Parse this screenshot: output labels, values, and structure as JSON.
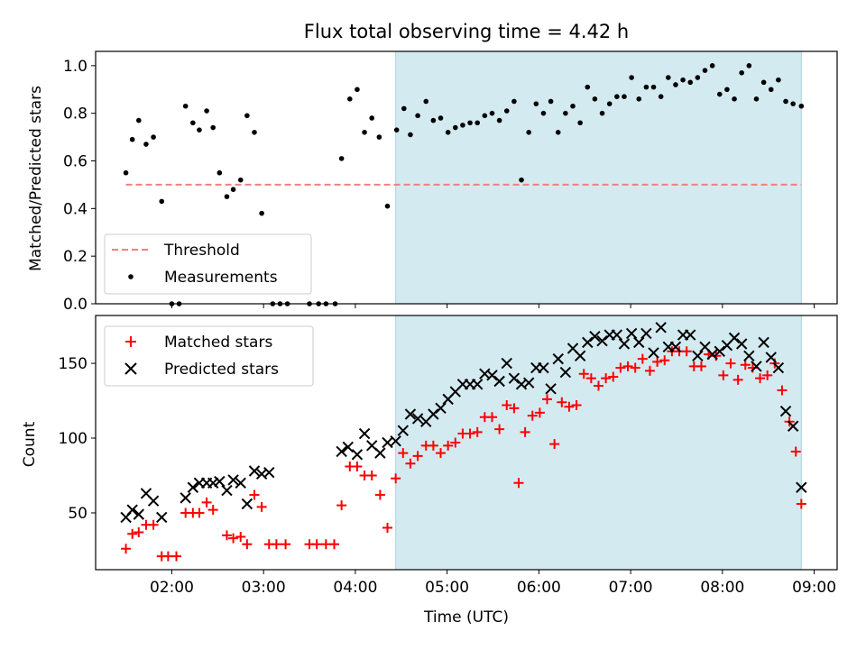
{
  "chart_data": [
    {
      "type": "scatter",
      "title": "Flux total observing time = 4.42 h",
      "xlabel": "",
      "ylabel": "Matched/Predicted stars",
      "ylim": [
        0,
        1.06
      ],
      "yticks": [
        "0.0",
        "0.2",
        "0.4",
        "0.6",
        "0.8",
        "1.0"
      ],
      "xlim_hours": [
        1.17,
        9.25
      ],
      "shaded_span_hours": [
        4.44,
        8.86
      ],
      "shade_color": "#d4eaf1",
      "threshold": {
        "name": "Threshold",
        "value": 0.5,
        "x_range_hours": [
          1.5,
          8.86
        ],
        "color": "#f08080"
      },
      "legend": {
        "placement": "lower-left",
        "entries": [
          "Threshold",
          "Measurements"
        ]
      },
      "series": [
        {
          "name": "Measurements",
          "color": "#000000",
          "marker": "dot",
          "x_hours": [
            1.5,
            1.57,
            1.64,
            1.72,
            1.8,
            1.89,
            2.0,
            2.08,
            2.15,
            2.23,
            2.3,
            2.38,
            2.45,
            2.52,
            2.6,
            2.67,
            2.75,
            2.82,
            2.9,
            2.98,
            3.1,
            3.18,
            3.26,
            3.5,
            3.6,
            3.68,
            3.78,
            3.85,
            3.94,
            4.02,
            4.1,
            4.18,
            4.26,
            4.35,
            4.45,
            4.53,
            4.6,
            4.68,
            4.77,
            4.85,
            4.93,
            5.01,
            5.09,
            5.17,
            5.25,
            5.33,
            5.41,
            5.49,
            5.57,
            5.65,
            5.73,
            5.81,
            5.89,
            5.97,
            6.05,
            6.13,
            6.21,
            6.29,
            6.37,
            6.45,
            6.53,
            6.61,
            6.69,
            6.77,
            6.85,
            6.93,
            7.01,
            7.09,
            7.17,
            7.25,
            7.33,
            7.41,
            7.49,
            7.57,
            7.65,
            7.73,
            7.81,
            7.89,
            7.97,
            8.05,
            8.13,
            8.21,
            8.29,
            8.37,
            8.45,
            8.53,
            8.61,
            8.69,
            8.77,
            8.86
          ],
          "y": [
            0.55,
            0.69,
            0.77,
            0.67,
            0.7,
            0.43,
            0.0,
            0.0,
            0.83,
            0.76,
            0.73,
            0.81,
            0.74,
            0.55,
            0.45,
            0.48,
            0.52,
            0.79,
            0.72,
            0.38,
            0.0,
            0.0,
            0.0,
            0.0,
            0.0,
            0.0,
            0.0,
            0.61,
            0.86,
            0.9,
            0.72,
            0.78,
            0.7,
            0.41,
            0.73,
            0.82,
            0.71,
            0.79,
            0.85,
            0.77,
            0.78,
            0.72,
            0.74,
            0.75,
            0.76,
            0.76,
            0.79,
            0.8,
            0.77,
            0.81,
            0.85,
            0.52,
            0.72,
            0.84,
            0.8,
            0.85,
            0.72,
            0.8,
            0.83,
            0.76,
            0.91,
            0.86,
            0.8,
            0.84,
            0.87,
            0.87,
            0.95,
            0.86,
            0.91,
            0.91,
            0.87,
            0.95,
            0.92,
            0.94,
            0.93,
            0.95,
            0.98,
            1.0,
            0.88,
            0.9,
            0.86,
            0.97,
            1.0,
            0.86,
            0.93,
            0.9,
            0.94,
            0.85,
            0.84,
            0.83
          ]
        }
      ]
    },
    {
      "type": "scatter",
      "title": "",
      "xlabel": "Time (UTC)",
      "ylabel": "Count",
      "ylim": [
        12,
        182
      ],
      "yticks": [
        "50",
        "100",
        "150"
      ],
      "xlim_hours": [
        1.17,
        9.25
      ],
      "xticks": [
        "02:00",
        "03:00",
        "04:00",
        "05:00",
        "06:00",
        "07:00",
        "08:00",
        "09:00"
      ],
      "shaded_span_hours": [
        4.44,
        8.86
      ],
      "shade_color": "#d4eaf1",
      "legend": {
        "placement": "upper-left",
        "entries": [
          "Matched stars",
          "Predicted stars"
        ]
      },
      "series": [
        {
          "name": "Matched stars",
          "color": "#ff0000",
          "marker": "plus",
          "points": [
            [
              1.5,
              26
            ],
            [
              1.57,
              36
            ],
            [
              1.64,
              37
            ],
            [
              1.72,
              42
            ],
            [
              1.8,
              42
            ],
            [
              1.89,
              21
            ],
            [
              1.96,
              21
            ],
            [
              2.05,
              21
            ],
            [
              2.15,
              50
            ],
            [
              2.23,
              50
            ],
            [
              2.3,
              50
            ],
            [
              2.38,
              57
            ],
            [
              2.45,
              52
            ],
            [
              2.6,
              35
            ],
            [
              2.67,
              33
            ],
            [
              2.75,
              34
            ],
            [
              2.82,
              29
            ],
            [
              2.9,
              62
            ],
            [
              2.98,
              54
            ],
            [
              3.06,
              29
            ],
            [
              3.14,
              29
            ],
            [
              3.24,
              29
            ],
            [
              3.5,
              29
            ],
            [
              3.58,
              29
            ],
            [
              3.68,
              29
            ],
            [
              3.77,
              29
            ],
            [
              3.85,
              55
            ],
            [
              3.94,
              81
            ],
            [
              4.02,
              81
            ],
            [
              4.1,
              75
            ],
            [
              4.18,
              75
            ],
            [
              4.27,
              62
            ],
            [
              4.35,
              40
            ],
            [
              4.44,
              73
            ],
            [
              4.52,
              90
            ],
            [
              4.6,
              83
            ],
            [
              4.68,
              88
            ],
            [
              4.77,
              95
            ],
            [
              4.85,
              95
            ],
            [
              4.93,
              90
            ],
            [
              5.01,
              95
            ],
            [
              5.09,
              97
            ],
            [
              5.17,
              103
            ],
            [
              5.25,
              103
            ],
            [
              5.33,
              104
            ],
            [
              5.41,
              114
            ],
            [
              5.49,
              114
            ],
            [
              5.57,
              106
            ],
            [
              5.65,
              122
            ],
            [
              5.73,
              120
            ],
            [
              5.78,
              70
            ],
            [
              5.85,
              104
            ],
            [
              5.93,
              115
            ],
            [
              6.01,
              117
            ],
            [
              6.09,
              126
            ],
            [
              6.17,
              96
            ],
            [
              6.25,
              124
            ],
            [
              6.33,
              121
            ],
            [
              6.41,
              122
            ],
            [
              6.49,
              143
            ],
            [
              6.57,
              140
            ],
            [
              6.65,
              135
            ],
            [
              6.73,
              140
            ],
            [
              6.81,
              141
            ],
            [
              6.89,
              147
            ],
            [
              6.97,
              148
            ],
            [
              7.05,
              147
            ],
            [
              7.13,
              153
            ],
            [
              7.21,
              145
            ],
            [
              7.29,
              151
            ],
            [
              7.37,
              152
            ],
            [
              7.45,
              158
            ],
            [
              7.53,
              158
            ],
            [
              7.61,
              158
            ],
            [
              7.69,
              148
            ],
            [
              7.77,
              148
            ],
            [
              7.85,
              156
            ],
            [
              7.93,
              155
            ],
            [
              8.01,
              142
            ],
            [
              8.09,
              150
            ],
            [
              8.17,
              139
            ],
            [
              8.25,
              149
            ],
            [
              8.33,
              147
            ],
            [
              8.41,
              140
            ],
            [
              8.49,
              142
            ],
            [
              8.57,
              150
            ],
            [
              8.65,
              132
            ],
            [
              8.73,
              111
            ],
            [
              8.8,
              91
            ],
            [
              8.86,
              56
            ]
          ]
        },
        {
          "name": "Predicted stars",
          "color": "#000000",
          "marker": "x",
          "points": [
            [
              1.5,
              47
            ],
            [
              1.57,
              52
            ],
            [
              1.64,
              49
            ],
            [
              1.72,
              63
            ],
            [
              1.8,
              58
            ],
            [
              1.89,
              47
            ],
            [
              2.15,
              60
            ],
            [
              2.23,
              67
            ],
            [
              2.3,
              70
            ],
            [
              2.38,
              70
            ],
            [
              2.45,
              70
            ],
            [
              2.52,
              71
            ],
            [
              2.6,
              65
            ],
            [
              2.67,
              72
            ],
            [
              2.75,
              70
            ],
            [
              2.82,
              56
            ],
            [
              2.9,
              78
            ],
            [
              2.98,
              76
            ],
            [
              3.06,
              77
            ],
            [
              3.85,
              91
            ],
            [
              3.92,
              94
            ],
            [
              4.02,
              89
            ],
            [
              4.1,
              103
            ],
            [
              4.18,
              95
            ],
            [
              4.27,
              90
            ],
            [
              4.35,
              97
            ],
            [
              4.44,
              98
            ],
            [
              4.52,
              105
            ],
            [
              4.6,
              116
            ],
            [
              4.68,
              113
            ],
            [
              4.77,
              111
            ],
            [
              4.85,
              116
            ],
            [
              4.93,
              120
            ],
            [
              5.01,
              126
            ],
            [
              5.09,
              131
            ],
            [
              5.17,
              136
            ],
            [
              5.25,
              136
            ],
            [
              5.33,
              136
            ],
            [
              5.41,
              143
            ],
            [
              5.49,
              142
            ],
            [
              5.57,
              138
            ],
            [
              5.65,
              150
            ],
            [
              5.73,
              140
            ],
            [
              5.81,
              136
            ],
            [
              5.89,
              137
            ],
            [
              5.97,
              147
            ],
            [
              6.05,
              147
            ],
            [
              6.13,
              133
            ],
            [
              6.21,
              153
            ],
            [
              6.29,
              144
            ],
            [
              6.37,
              160
            ],
            [
              6.45,
              155
            ],
            [
              6.53,
              164
            ],
            [
              6.61,
              168
            ],
            [
              6.69,
              165
            ],
            [
              6.77,
              169
            ],
            [
              6.85,
              169
            ],
            [
              6.93,
              163
            ],
            [
              7.01,
              170
            ],
            [
              7.09,
              164
            ],
            [
              7.17,
              170
            ],
            [
              7.25,
              157
            ],
            [
              7.33,
              174
            ],
            [
              7.41,
              161
            ],
            [
              7.49,
              161
            ],
            [
              7.57,
              169
            ],
            [
              7.65,
              169
            ],
            [
              7.73,
              155
            ],
            [
              7.81,
              161
            ],
            [
              7.89,
              156
            ],
            [
              7.97,
              158
            ],
            [
              8.05,
              162
            ],
            [
              8.13,
              167
            ],
            [
              8.21,
              163
            ],
            [
              8.29,
              155
            ],
            [
              8.37,
              148
            ],
            [
              8.45,
              164
            ],
            [
              8.53,
              154
            ],
            [
              8.61,
              147
            ],
            [
              8.69,
              118
            ],
            [
              8.77,
              108
            ],
            [
              8.86,
              67
            ]
          ]
        }
      ]
    }
  ]
}
